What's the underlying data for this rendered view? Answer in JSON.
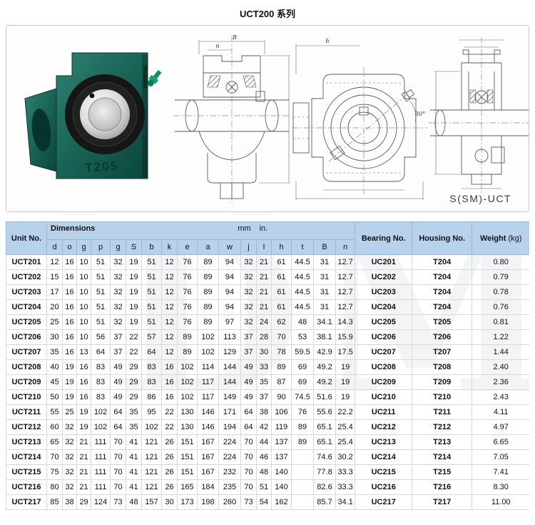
{
  "page": {
    "title": "UCT200 系列",
    "watermark": "DM"
  },
  "colors": {
    "header_bg": "#b9d2ec",
    "housing_green": "#15604f",
    "grease_fitting": "#14a06b",
    "chrome": "#c9c9c9"
  },
  "diagram": {
    "photo": {
      "embossed_label": "T205"
    },
    "caption": "S(SM)-UCT",
    "labels": {
      "B": "B",
      "n": "n",
      "h": "h",
      "angle": "30°"
    }
  },
  "table": {
    "header": {
      "unit_no": "Unit No.",
      "dimensions": "Dimensions",
      "mm_label": "mm",
      "in_label": "in.",
      "bearing_no": "Bearing No.",
      "housing_no": "Housing No.",
      "weight": "Weight",
      "weight_unit": "(kg)",
      "dim_cols": [
        "d",
        "o",
        "g",
        "p",
        "g",
        "S",
        "b",
        "k",
        "e",
        "a",
        "w",
        "j",
        "l",
        "h",
        "t",
        "B",
        "n"
      ]
    },
    "rows": [
      {
        "unit": "UCT201",
        "dims": [
          "12",
          "16",
          "10",
          "51",
          "32",
          "19",
          "51",
          "12",
          "76",
          "89",
          "94",
          "32",
          "21",
          "61",
          "44.5",
          "31",
          "12.7"
        ],
        "bearing": "UC201",
        "housing": "T204",
        "weight": "0.80"
      },
      {
        "unit": "UCT202",
        "dims": [
          "15",
          "16",
          "10",
          "51",
          "32",
          "19",
          "51",
          "12",
          "76",
          "89",
          "94",
          "32",
          "21",
          "61",
          "44.5",
          "31",
          "12.7"
        ],
        "bearing": "UC202",
        "housing": "T204",
        "weight": "0.79"
      },
      {
        "unit": "UCT203",
        "dims": [
          "17",
          "16",
          "10",
          "51",
          "32",
          "19",
          "51",
          "12",
          "76",
          "89",
          "94",
          "32",
          "21",
          "61",
          "44.5",
          "31",
          "12.7"
        ],
        "bearing": "UC203",
        "housing": "T204",
        "weight": "0.78"
      },
      {
        "unit": "UCT204",
        "dims": [
          "20",
          "16",
          "10",
          "51",
          "32",
          "19",
          "51",
          "12",
          "76",
          "89",
          "94",
          "32",
          "21",
          "61",
          "44.5",
          "31",
          "12.7"
        ],
        "bearing": "UC204",
        "housing": "T204",
        "weight": "0.76"
      },
      {
        "unit": "UCT205",
        "dims": [
          "25",
          "16",
          "10",
          "51",
          "32",
          "19",
          "51",
          "12",
          "76",
          "89",
          "97",
          "32",
          "24",
          "62",
          "48",
          "34.1",
          "14.3"
        ],
        "bearing": "UC205",
        "housing": "T205",
        "weight": "0.81"
      },
      {
        "unit": "UCT206",
        "dims": [
          "30",
          "16",
          "10",
          "56",
          "37",
          "22",
          "57",
          "12",
          "89",
          "102",
          "113",
          "37",
          "28",
          "70",
          "53",
          "38.1",
          "15.9"
        ],
        "bearing": "UC206",
        "housing": "T206",
        "weight": "1.22"
      },
      {
        "unit": "UCT207",
        "dims": [
          "35",
          "16",
          "13",
          "64",
          "37",
          "22",
          "64",
          "12",
          "89",
          "102",
          "129",
          "37",
          "30",
          "78",
          "59.5",
          "42.9",
          "17.5"
        ],
        "bearing": "UC207",
        "housing": "T207",
        "weight": "1.44"
      },
      {
        "unit": "UCT208",
        "dims": [
          "40",
          "19",
          "16",
          "83",
          "49",
          "29",
          "83",
          "16",
          "102",
          "114",
          "144",
          "49",
          "33",
          "89",
          "69",
          "49.2",
          "19"
        ],
        "bearing": "UC208",
        "housing": "T208",
        "weight": "2.40"
      },
      {
        "unit": "UCT209",
        "dims": [
          "45",
          "19",
          "16",
          "83",
          "49",
          "29",
          "83",
          "16",
          "102",
          "117",
          "144",
          "49",
          "35",
          "87",
          "69",
          "49.2",
          "19"
        ],
        "bearing": "UC209",
        "housing": "T209",
        "weight": "2.36"
      },
      {
        "unit": "UCT210",
        "dims": [
          "50",
          "19",
          "16",
          "83",
          "49",
          "29",
          "86",
          "16",
          "102",
          "117",
          "149",
          "49",
          "37",
          "90",
          "74.5",
          "51.6",
          "19"
        ],
        "bearing": "UC210",
        "housing": "T210",
        "weight": "2.43"
      },
      {
        "unit": "UCT211",
        "dims": [
          "55",
          "25",
          "19",
          "102",
          "64",
          "35",
          "95",
          "22",
          "130",
          "146",
          "171",
          "64",
          "38",
          "106",
          "76",
          "55.6",
          "22.2"
        ],
        "bearing": "UC211",
        "housing": "T211",
        "weight": "4.11"
      },
      {
        "unit": "UCT212",
        "dims": [
          "60",
          "32",
          "19",
          "102",
          "64",
          "35",
          "102",
          "22",
          "130",
          "146",
          "194",
          "64",
          "42",
          "119",
          "89",
          "65.1",
          "25.4"
        ],
        "bearing": "UC212",
        "housing": "T212",
        "weight": "4.97"
      },
      {
        "unit": "UCT213",
        "dims": [
          "65",
          "32",
          "21",
          "111",
          "70",
          "41",
          "121",
          "26",
          "151",
          "167",
          "224",
          "70",
          "44",
          "137",
          "89",
          "65.1",
          "25.4"
        ],
        "bearing": "UC213",
        "housing": "T213",
        "weight": "6.65"
      },
      {
        "unit": "UCT214",
        "dims": [
          "70",
          "32",
          "21",
          "111",
          "70",
          "41",
          "121",
          "26",
          "151",
          "167",
          "224",
          "70",
          "46",
          "137",
          "",
          "74.6",
          "30.2"
        ],
        "bearing": "UC214",
        "housing": "T214",
        "weight": "7.05"
      },
      {
        "unit": "UCT215",
        "dims": [
          "75",
          "32",
          "21",
          "111",
          "70",
          "41",
          "121",
          "26",
          "151",
          "167",
          "232",
          "70",
          "48",
          "140",
          "",
          "77.8",
          "33.3"
        ],
        "bearing": "UC215",
        "housing": "T215",
        "weight": "7.41"
      },
      {
        "unit": "UCT216",
        "dims": [
          "80",
          "32",
          "21",
          "111",
          "70",
          "41",
          "121",
          "26",
          "165",
          "184",
          "235",
          "70",
          "51",
          "140",
          "",
          "82.6",
          "33.3"
        ],
        "bearing": "UC216",
        "housing": "T216",
        "weight": "8.30"
      },
      {
        "unit": "UCT217",
        "dims": [
          "85",
          "38",
          "29",
          "124",
          "73",
          "48",
          "157",
          "30",
          "173",
          "198",
          "260",
          "73",
          "54",
          "162",
          "",
          "85.7",
          "34.1"
        ],
        "bearing": "UC217",
        "housing": "T217",
        "weight": "11.00"
      }
    ]
  }
}
